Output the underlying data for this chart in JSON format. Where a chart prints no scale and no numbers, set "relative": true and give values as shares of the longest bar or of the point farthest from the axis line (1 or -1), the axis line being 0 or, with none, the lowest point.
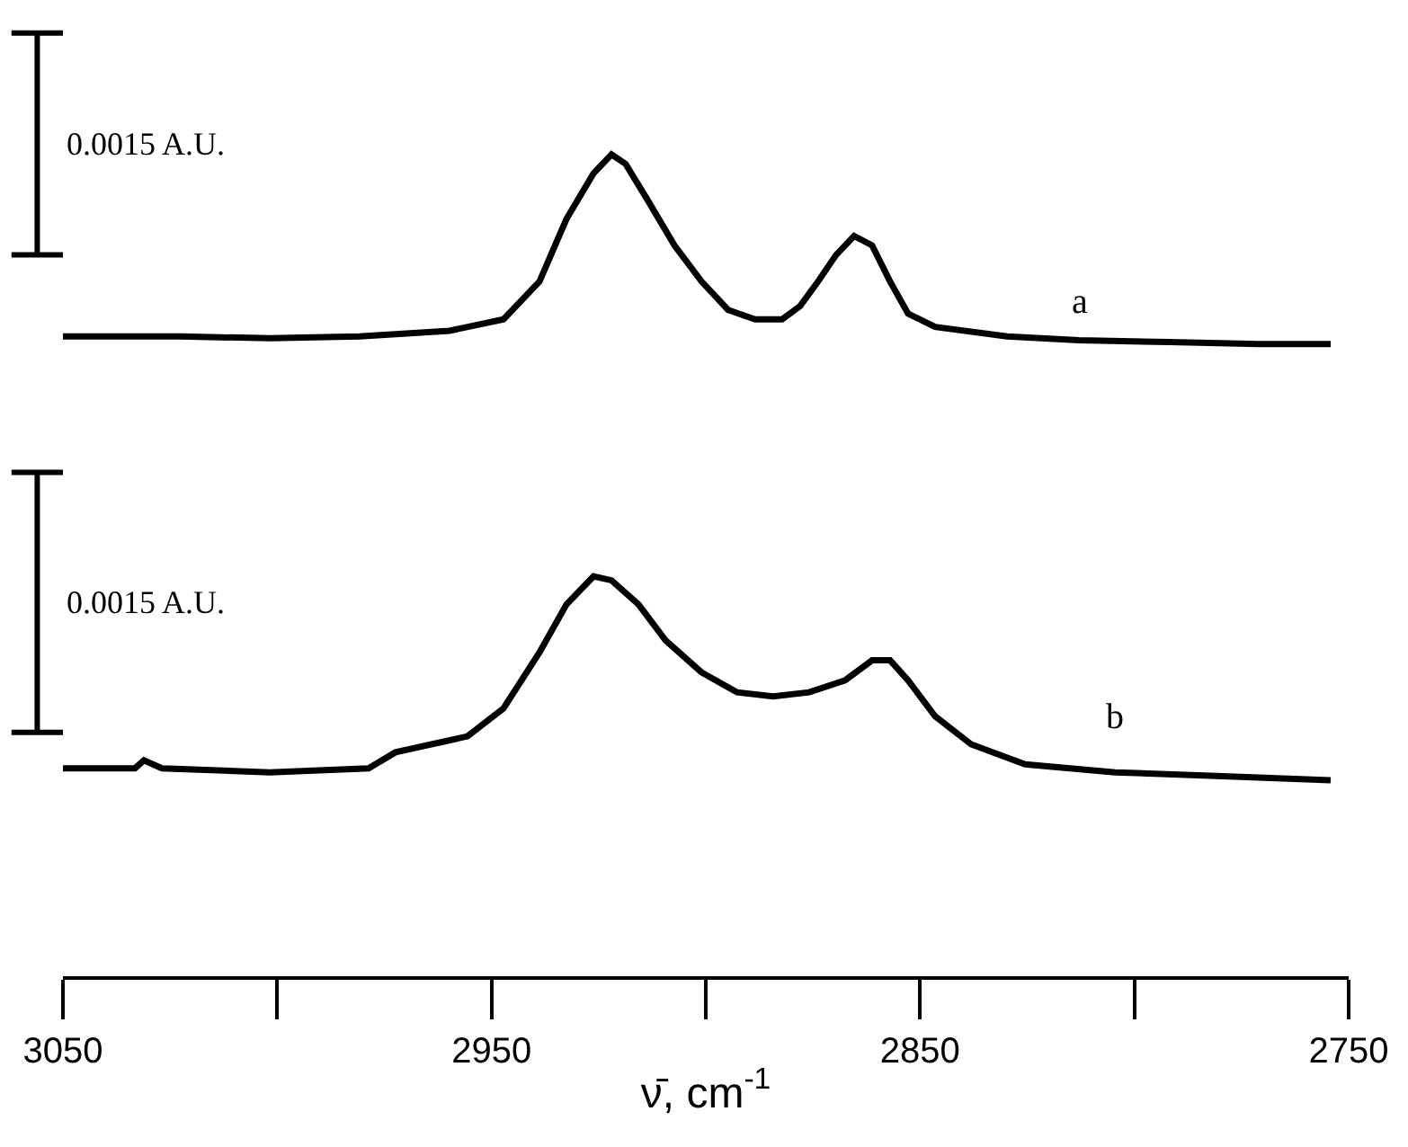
{
  "chart_data": [
    {
      "type": "line",
      "relative": true,
      "xlim": [
        3050,
        2750
      ],
      "tick_labels": false,
      "marker": "none",
      "line_style": "solid",
      "annotations": [
        "0.0015 A.U."
      ],
      "series": [
        {
          "name": "a",
          "color": "#000000",
          "x": [
            3050,
            3022.7,
            3001.7,
            2980.8,
            2959.8,
            2947.2,
            2938.8,
            2932.5,
            2926.2,
            2922.0,
            2918.7,
            2913.6,
            2907.3,
            2901.0,
            2894.8,
            2888.5,
            2882.2,
            2878.0,
            2873.8,
            2869.6,
            2865.4,
            2861.2,
            2857.0,
            2852.8,
            2846.5,
            2829.7,
            2812.9,
            2791.9,
            2770.9,
            2754.2
          ],
          "values": [
            0.04,
            0.04,
            0.03,
            0.04,
            0.07,
            0.13,
            0.33,
            0.66,
            0.9,
            1.0,
            0.95,
            0.76,
            0.52,
            0.33,
            0.18,
            0.13,
            0.13,
            0.2,
            0.33,
            0.47,
            0.57,
            0.52,
            0.33,
            0.16,
            0.09,
            0.04,
            0.02,
            0.01,
            0.0,
            0.0
          ]
        }
      ]
    },
    {
      "type": "line",
      "relative": true,
      "xlabel": "ν̄, cm$^{-1}$",
      "xlim": [
        3050,
        2750
      ],
      "xticks": [
        3050,
        2950,
        2850,
        2750
      ],
      "marker": "none",
      "line_style": "solid",
      "annotations": [
        "0.0015 A.U."
      ],
      "series": [
        {
          "name": "b",
          "color": "#000000",
          "x": [
            3050,
            3033.2,
            3031.1,
            3026.9,
            3001.7,
            2978.7,
            2972.4,
            2955.6,
            2947.2,
            2938.8,
            2932.5,
            2926.2,
            2922.0,
            2915.7,
            2909.4,
            2901.0,
            2892.7,
            2884.3,
            2875.9,
            2867.5,
            2861.2,
            2857.0,
            2852.8,
            2846.5,
            2838.1,
            2825.5,
            2804.5,
            2779.4,
            2754.2
          ],
          "values": [
            0.52,
            0.52,
            0.54,
            0.52,
            0.51,
            0.52,
            0.56,
            0.6,
            0.67,
            0.81,
            0.93,
            1.0,
            0.99,
            0.93,
            0.84,
            0.76,
            0.71,
            0.7,
            0.71,
            0.74,
            0.79,
            0.79,
            0.74,
            0.65,
            0.58,
            0.53,
            0.51,
            0.5,
            0.49
          ]
        }
      ]
    }
  ]
}
